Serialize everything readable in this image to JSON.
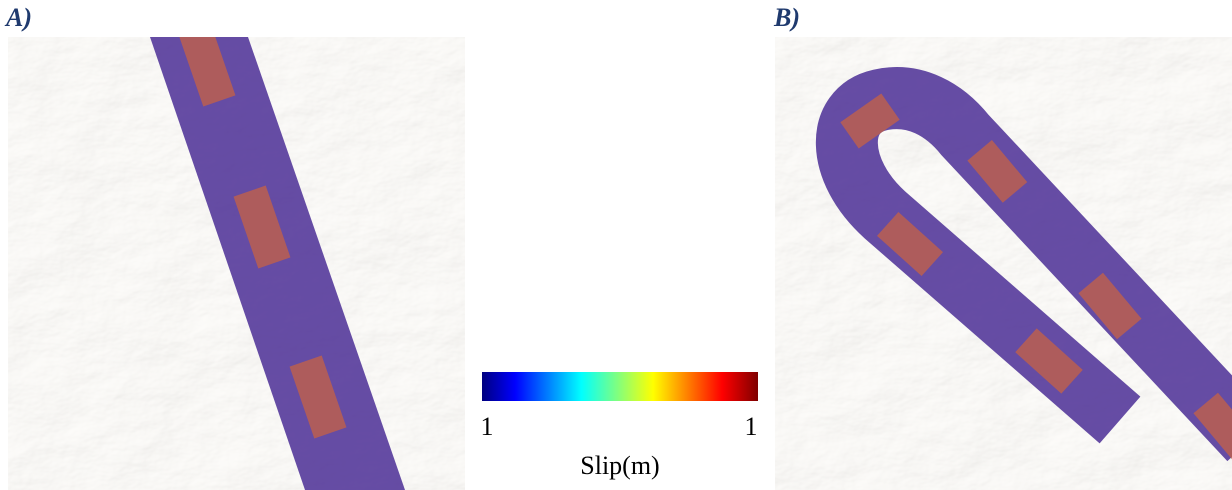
{
  "panels": [
    {
      "label": "A)"
    },
    {
      "label": "B)"
    }
  ],
  "colorbar": {
    "min_label": "1",
    "max_label": "1",
    "title": "Slip(m)"
  }
}
